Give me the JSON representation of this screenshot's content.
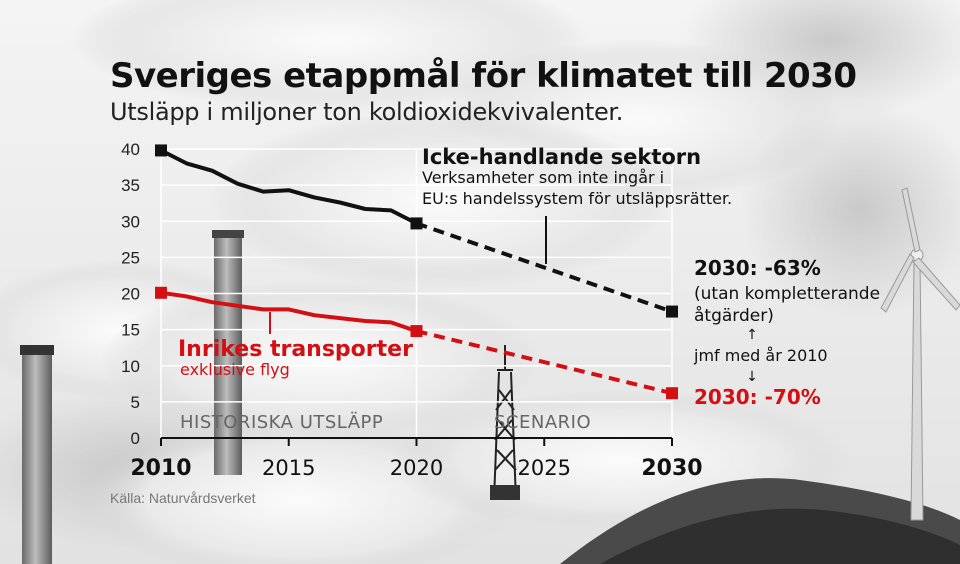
{
  "header": {
    "title": "Sveriges etappmål för klimatet till 2030",
    "subtitle": "Utsläpp i miljoner ton koldioxidekvivalenter."
  },
  "source": "Källa: Naturvårdsverket",
  "colors": {
    "black_series": "#111111",
    "red_series": "#d40f14",
    "grid": "#ffffff"
  },
  "chart_data": {
    "type": "line",
    "xlim": [
      2010,
      2030
    ],
    "ylim": [
      0,
      40
    ],
    "x_ticks": [
      {
        "value": 2010,
        "label": "2010",
        "bold": true
      },
      {
        "value": 2015,
        "label": "2015",
        "bold": false
      },
      {
        "value": 2020,
        "label": "2020",
        "bold": false
      },
      {
        "value": 2025,
        "label": "2025",
        "bold": false
      },
      {
        "value": 2030,
        "label": "2030",
        "bold": true
      }
    ],
    "y_ticks": [
      0,
      5,
      10,
      15,
      20,
      25,
      30,
      35,
      40
    ],
    "grid": true,
    "series": [
      {
        "name": "Icke-handlande sektorn",
        "description": "Verksamheter som inte ingår i EU:s handelssystem för utsläppsrätter.",
        "color": "#111111",
        "historical": [
          {
            "x": 2010,
            "y": 39.8
          },
          {
            "x": 2011,
            "y": 38.0
          },
          {
            "x": 2012,
            "y": 37.0
          },
          {
            "x": 2013,
            "y": 35.2
          },
          {
            "x": 2014,
            "y": 34.1
          },
          {
            "x": 2015,
            "y": 34.3
          },
          {
            "x": 2016,
            "y": 33.3
          },
          {
            "x": 2017,
            "y": 32.6
          },
          {
            "x": 2018,
            "y": 31.7
          },
          {
            "x": 2019,
            "y": 31.5
          },
          {
            "x": 2020,
            "y": 29.7
          }
        ],
        "scenario": [
          {
            "x": 2020,
            "y": 29.7
          },
          {
            "x": 2030,
            "y": 17.5
          }
        ],
        "target_label": "2030: -63%",
        "target_note": "(utan kompletterande åtgärder)"
      },
      {
        "name": "Inrikes transporter",
        "description": "exklusive flyg",
        "color": "#d40f14",
        "historical": [
          {
            "x": 2010,
            "y": 20.1
          },
          {
            "x": 2011,
            "y": 19.6
          },
          {
            "x": 2012,
            "y": 18.8
          },
          {
            "x": 2013,
            "y": 18.3
          },
          {
            "x": 2014,
            "y": 17.8
          },
          {
            "x": 2015,
            "y": 17.8
          },
          {
            "x": 2016,
            "y": 17.0
          },
          {
            "x": 2017,
            "y": 16.6
          },
          {
            "x": 2018,
            "y": 16.2
          },
          {
            "x": 2019,
            "y": 16.0
          },
          {
            "x": 2020,
            "y": 14.8
          }
        ],
        "scenario": [
          {
            "x": 2020,
            "y": 14.8
          },
          {
            "x": 2030,
            "y": 6.2
          }
        ],
        "target_label": "2030: -70%"
      }
    ],
    "comparison_note": "jmf med år 2010",
    "arrow_up": "↑",
    "arrow_down": "↓",
    "annotations": {
      "historical": "HISTORISKA UTSLÄPP",
      "scenario": "SCENARIO"
    }
  }
}
